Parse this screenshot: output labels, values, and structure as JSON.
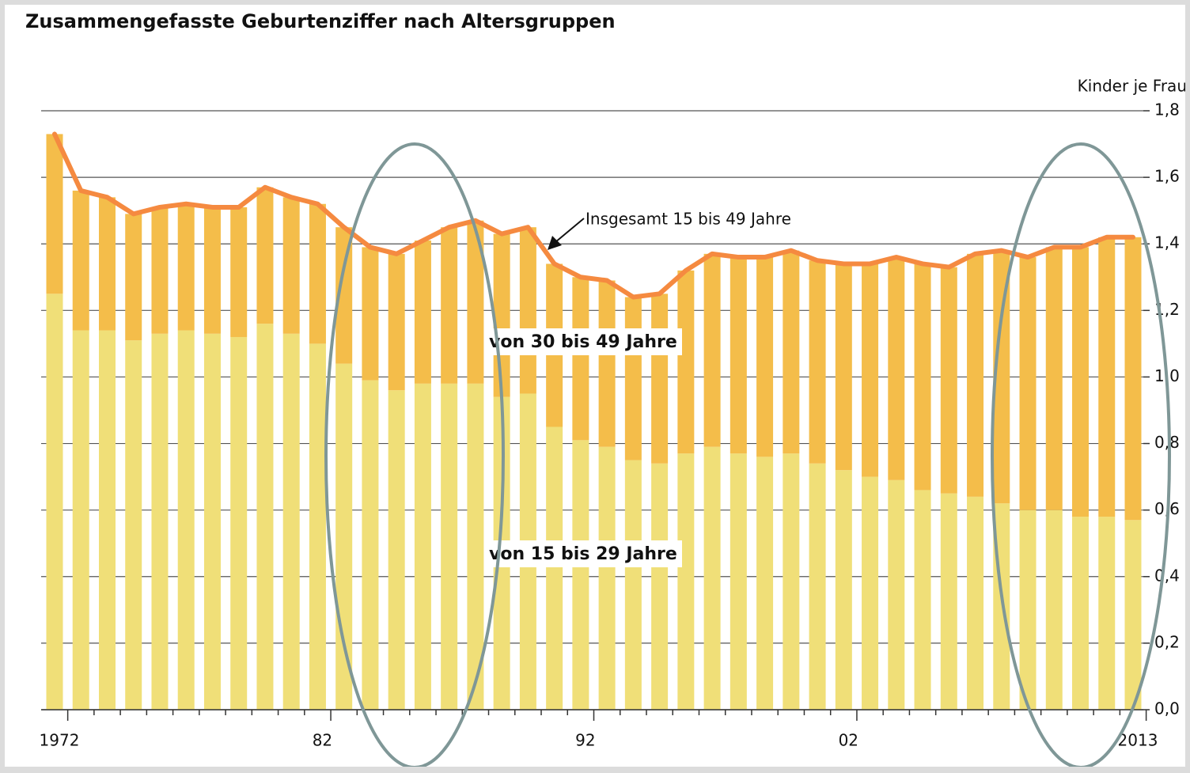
{
  "chart_data": {
    "type": "stacked-bar-line",
    "title": "Zusammengefasste Geburtenziffer nach Altersgruppen",
    "y_axis_label": "Kinder je Frau",
    "categories": [
      "1972",
      null,
      null,
      null,
      null,
      null,
      null,
      null,
      null,
      null,
      "82",
      null,
      null,
      null,
      null,
      null,
      null,
      null,
      null,
      null,
      "92",
      null,
      null,
      null,
      null,
      null,
      null,
      null,
      null,
      null,
      "02",
      null,
      null,
      null,
      null,
      null,
      null,
      null,
      null,
      null,
      null,
      "2013"
    ],
    "series": [
      {
        "name": "von 15 bis 29 Jahre",
        "color": "#f0df78",
        "stack": true,
        "values": [
          1.25,
          1.14,
          1.14,
          1.11,
          1.13,
          1.14,
          1.13,
          1.12,
          1.16,
          1.13,
          1.1,
          1.04,
          0.99,
          0.96,
          0.98,
          0.98,
          0.98,
          0.94,
          0.95,
          0.85,
          0.81,
          0.79,
          0.75,
          0.74,
          0.77,
          0.79,
          0.77,
          0.76,
          0.77,
          0.74,
          0.72,
          0.7,
          0.69,
          0.66,
          0.65,
          0.64,
          0.62,
          0.6,
          0.6,
          0.58,
          0.58,
          0.57
        ]
      },
      {
        "name": "von 30 bis 49 Jahre",
        "color": "#f4bd4a",
        "stack": true,
        "values": [
          0.48,
          0.42,
          0.4,
          0.38,
          0.38,
          0.38,
          0.38,
          0.39,
          0.41,
          0.41,
          0.42,
          0.41,
          0.4,
          0.41,
          0.43,
          0.47,
          0.49,
          0.49,
          0.5,
          0.49,
          0.49,
          0.5,
          0.49,
          0.51,
          0.55,
          0.58,
          0.59,
          0.6,
          0.61,
          0.61,
          0.62,
          0.64,
          0.67,
          0.68,
          0.68,
          0.73,
          0.76,
          0.76,
          0.79,
          0.81,
          0.84,
          0.85
        ]
      },
      {
        "name": "Insgesamt 15 bis 49 Jahre",
        "color": "#f58a40",
        "type": "line",
        "values": [
          1.73,
          1.56,
          1.54,
          1.49,
          1.51,
          1.52,
          1.51,
          1.51,
          1.57,
          1.54,
          1.52,
          1.45,
          1.39,
          1.37,
          1.41,
          1.45,
          1.47,
          1.43,
          1.45,
          1.34,
          1.3,
          1.29,
          1.24,
          1.25,
          1.32,
          1.37,
          1.36,
          1.36,
          1.38,
          1.35,
          1.34,
          1.34,
          1.36,
          1.34,
          1.33,
          1.37,
          1.38,
          1.36,
          1.39,
          1.39,
          1.42,
          1.42
        ]
      }
    ],
    "ylim": [
      0,
      1.8
    ],
    "yticks": [
      {
        "value": 0,
        "label": "0,0"
      },
      {
        "value": 0.2,
        "label": "0,2"
      },
      {
        "value": 0.4,
        "label": "0,4"
      },
      {
        "value": 0.6,
        "label": "0,6"
      },
      {
        "value": 0.8,
        "label": "0,8"
      },
      {
        "value": 1.0,
        "label": "1,0"
      },
      {
        "value": 1.2,
        "label": "1,2"
      },
      {
        "value": 1.4,
        "label": "1,4"
      },
      {
        "value": 1.6,
        "label": "1,6"
      },
      {
        "value": 1.8,
        "label": "1,8"
      }
    ],
    "y_axis_side": "right",
    "grid": true
  }
}
